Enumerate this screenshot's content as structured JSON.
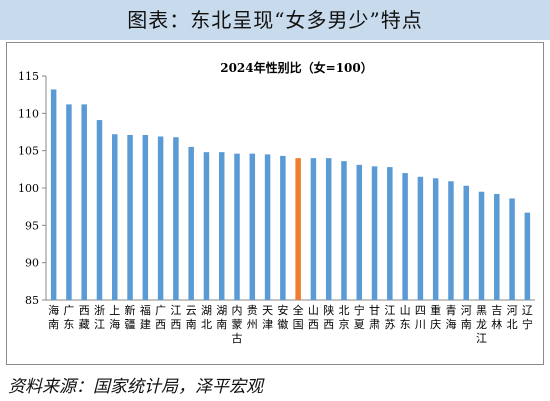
{
  "header": {
    "title": "图表：东北呈现“女多男少”特点"
  },
  "chart_data": {
    "type": "bar",
    "title": "2024年性别比（女=100）",
    "categories": [
      "海南",
      "广东",
      "西藏",
      "浙江",
      "上海",
      "新疆",
      "福建",
      "广西",
      "江西",
      "云南",
      "湖北",
      "湖南",
      "内蒙古",
      "贵州",
      "天津",
      "安徽",
      "全国",
      "山西",
      "陕西",
      "北京",
      "宁夏",
      "甘肃",
      "江苏",
      "山东",
      "四川",
      "重庆",
      "青海",
      "河南",
      "黑龙江",
      "吉林",
      "河北",
      "辽宁"
    ],
    "values": [
      113.2,
      111.2,
      111.2,
      109.1,
      107.2,
      107.1,
      107.1,
      106.9,
      106.8,
      105.5,
      104.8,
      104.8,
      104.6,
      104.6,
      104.5,
      104.3,
      104.0,
      104.0,
      104.0,
      103.6,
      103.1,
      102.9,
      102.8,
      102.0,
      101.5,
      101.3,
      100.9,
      100.3,
      99.5,
      99.2,
      98.6,
      96.7
    ],
    "highlight_category": "全国",
    "colors": {
      "bar": "#5b9bd5",
      "highlight": "#ed7d31",
      "axis": "#888888"
    },
    "ylim": [
      85,
      115
    ],
    "yticks": [
      85,
      90,
      95,
      100,
      105,
      110,
      115
    ],
    "grid": false,
    "legend": "none",
    "xlabel": "",
    "ylabel": ""
  },
  "footer": {
    "source": "资料来源：国家统计局，泽平宏观"
  }
}
